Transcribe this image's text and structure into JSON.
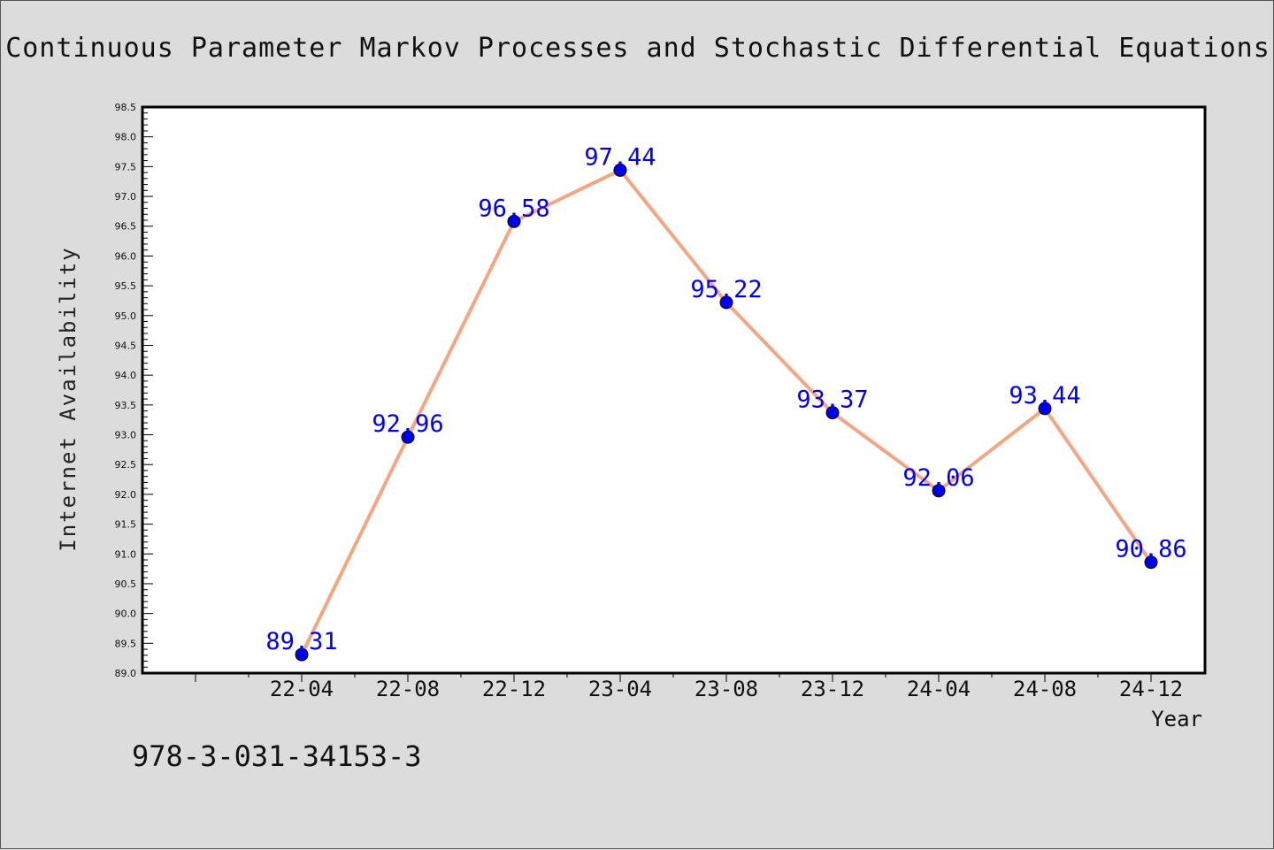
{
  "chart_data": {
    "type": "line",
    "title": "Continuous Parameter Markov Processes and Stochastic Differential Equations",
    "xlabel": "Year",
    "ylabel": "Internet Availability",
    "categories": [
      "22-04",
      "22-08",
      "22-12",
      "23-04",
      "23-08",
      "23-12",
      "24-04",
      "24-08",
      "24-12"
    ],
    "series": [
      {
        "values": [
          89.31,
          92.96,
          96.58,
          97.44,
          95.22,
          93.37,
          92.06,
          93.44,
          90.86
        ]
      }
    ],
    "data_labels": [
      "89.31",
      "92.96",
      "96.58",
      "97.44",
      "95.22",
      "93.37",
      "92.06",
      "93.44",
      "90.86"
    ],
    "ylim": [
      89.0,
      98.5
    ],
    "yticks": [
      "89.0",
      "89.5",
      "90.0",
      "90.5",
      "91.0",
      "91.5",
      "92.0",
      "92.5",
      "93.0",
      "93.5",
      "94.0",
      "94.5",
      "95.0",
      "95.5",
      "96.0",
      "96.5",
      "97.0",
      "97.5",
      "98.0",
      "98.5"
    ],
    "grid": false,
    "colors": {
      "line": "#f4a582",
      "marker": "#0000ee",
      "data_label": "#0000ee",
      "background": "#dcdcdc",
      "plot_background": "#ffffff"
    }
  },
  "footer": {
    "isbn": "978-3-031-34153-3"
  }
}
